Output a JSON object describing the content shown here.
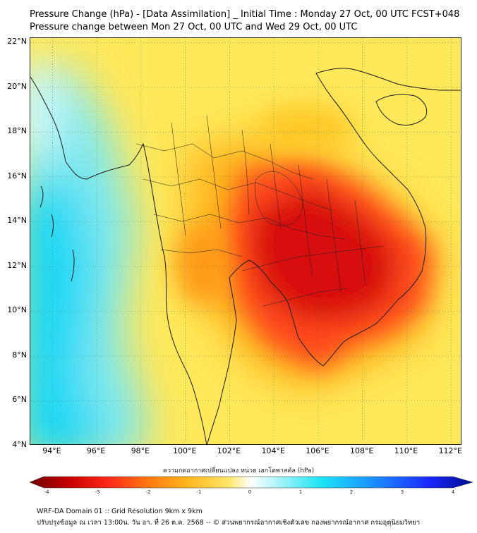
{
  "header": {
    "title_line1": "Pressure Change (hPa) - [Data Assimilation] _ Initial Time : Monday 27 Oct, 00 UTC FCST+048",
    "title_line2": "Pressure change between Mon 27 Oct, 00 UTC and Wed 29 Oct, 00 UTC"
  },
  "map": {
    "lat_labels": [
      "22°N",
      "20°N",
      "18°N",
      "16°N",
      "14°N",
      "12°N",
      "10°N",
      "8°N",
      "6°N",
      "4°N"
    ],
    "lon_labels": [
      "94°E",
      "96°E",
      "98°E",
      "100°E",
      "102°E",
      "104°E",
      "106°E",
      "108°E",
      "110°E",
      "112°E"
    ],
    "lat_values": [
      22,
      20,
      18,
      16,
      14,
      12,
      10,
      8,
      6,
      4
    ],
    "lon_values": [
      94,
      96,
      98,
      100,
      102,
      104,
      106,
      108,
      110,
      112
    ],
    "extent": {
      "lon_min": 93,
      "lon_max": 112.5,
      "lat_min": 4,
      "lat_max": 22.2
    },
    "field": "pressure change (hPa)",
    "minimum_region": "southern Cambodia / Gulf of Thailand",
    "colors": {
      "strong_fall": "#d81010",
      "moderate_fall": "#ff4a1a",
      "slight_fall": "#ffb41e",
      "near_zero": "#ffe85a",
      "rise": "#7ee8ef",
      "strong_rise": "#1ad8f5",
      "coastline": "#1a1a1a"
    }
  },
  "colorbar": {
    "title": "ความกดอากาศเปลี่ยนแปลง หน่วย เฮกโตพาสคัล (hPa)",
    "ticks": [
      "-4",
      "-3",
      "-2",
      "-1",
      "0",
      "1",
      "2",
      "3",
      "4"
    ],
    "tick_values": [
      -4,
      -3,
      -2,
      -1,
      0,
      1,
      2,
      3,
      4
    ],
    "range": [
      -4,
      4
    ],
    "colors": [
      "#6e0000",
      "#c80000",
      "#ff2a1a",
      "#ff7a10",
      "#ffb820",
      "#ffe66a",
      "#ffffff",
      "#aaf4f8",
      "#1ae4f5",
      "#1a8cff",
      "#1a2aff",
      "#000a8a"
    ]
  },
  "footer": {
    "line1": "WRF-DA Domain 01 :: Grid Resolution 9km x 9km",
    "line2": "ปรับปรุงข้อมูล ณ เวลา 13:00น. วัน อา. ที่ 26 ต.ค. 2568 -- © ส่วนพยากรณ์อากาศเชิงตัวเลข กองพยากรณ์อากาศ กรมอุตุนิยมวิทยา"
  }
}
